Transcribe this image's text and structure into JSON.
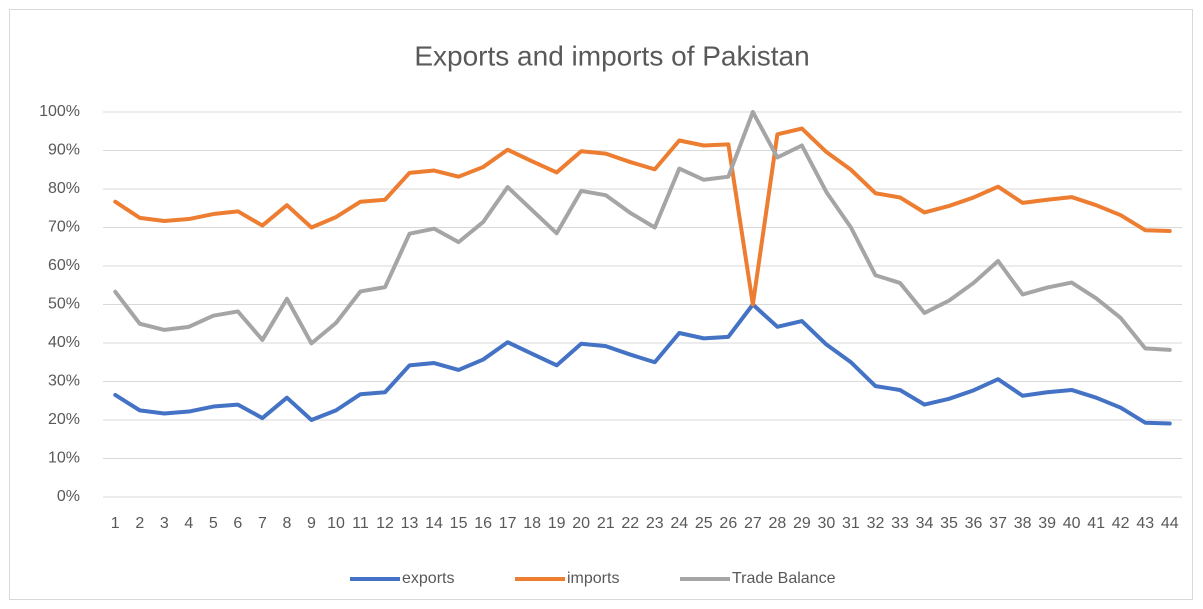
{
  "chart_data": {
    "type": "line",
    "title": "Exports and imports  of Pakistan",
    "categories": [
      "1",
      "2",
      "3",
      "4",
      "5",
      "6",
      "7",
      "8",
      "9",
      "10",
      "11",
      "12",
      "13",
      "14",
      "15",
      "16",
      "17",
      "18",
      "19",
      "20",
      "21",
      "22",
      "23",
      "24",
      "25",
      "26",
      "27",
      "28",
      "29",
      "30",
      "31",
      "32",
      "33",
      "34",
      "35",
      "36",
      "37",
      "38",
      "39",
      "40",
      "41",
      "42",
      "43",
      "44"
    ],
    "series": [
      {
        "name": "exports",
        "color": "#4472c4",
        "values": [
          26.5,
          22.5,
          21.7,
          22.2,
          23.5,
          24,
          20.5,
          25.8,
          20,
          22.5,
          26.7,
          27.2,
          34.2,
          34.8,
          33,
          35.7,
          40.2,
          37.2,
          34.2,
          39.8,
          39.2,
          37,
          35,
          42.6,
          41.2,
          41.6,
          50,
          44.2,
          45.7,
          39.6,
          35,
          28.8,
          27.8,
          24,
          25.5,
          27.7,
          30.6,
          26.3,
          27.2,
          27.8,
          25.8,
          23.2,
          19.3,
          19.1
        ]
      },
      {
        "name": "imports",
        "color": "#ed7d31",
        "values": [
          76.7,
          72.5,
          71.7,
          72.2,
          73.5,
          74.2,
          70.5,
          75.8,
          70,
          72.7,
          76.7,
          77.2,
          84.2,
          84.8,
          83.2,
          85.7,
          90.2,
          87.2,
          84.3,
          89.8,
          89.2,
          87,
          85.1,
          92.6,
          91.3,
          91.6,
          50,
          94.2,
          95.7,
          89.6,
          85,
          78.9,
          77.8,
          73.9,
          75.6,
          77.8,
          80.6,
          76.4,
          77.2,
          77.9,
          75.8,
          73.2,
          69.3,
          69.1
        ]
      },
      {
        "name": "Trade Balance",
        "color": "#a5a5a5",
        "values": [
          53.3,
          45,
          43.4,
          44.2,
          47.1,
          48.2,
          40.8,
          51.5,
          39.9,
          45.2,
          53.4,
          54.5,
          68.4,
          69.7,
          66.2,
          71.4,
          80.5,
          74.5,
          68.5,
          79.5,
          78.4,
          73.8,
          70,
          85.3,
          82.4,
          83.2,
          100,
          88.2,
          91.3,
          79.2,
          70,
          57.6,
          55.6,
          47.8,
          51,
          55.6,
          61.3,
          52.6,
          54.4,
          55.7,
          51.6,
          46.5,
          38.6,
          38.2
        ]
      }
    ],
    "ylim": [
      0,
      100
    ],
    "yticks": [
      {
        "value": 0,
        "label": "0%"
      },
      {
        "value": 10,
        "label": "10%"
      },
      {
        "value": 20,
        "label": "20%"
      },
      {
        "value": 30,
        "label": "30%"
      },
      {
        "value": 40,
        "label": "40%"
      },
      {
        "value": 50,
        "label": "50%"
      },
      {
        "value": 60,
        "label": "60%"
      },
      {
        "value": 70,
        "label": "70%"
      },
      {
        "value": 80,
        "label": "80%"
      },
      {
        "value": 90,
        "label": "90%"
      },
      {
        "value": 100,
        "label": "100%"
      }
    ],
    "grid": true,
    "legend": "bottom"
  }
}
